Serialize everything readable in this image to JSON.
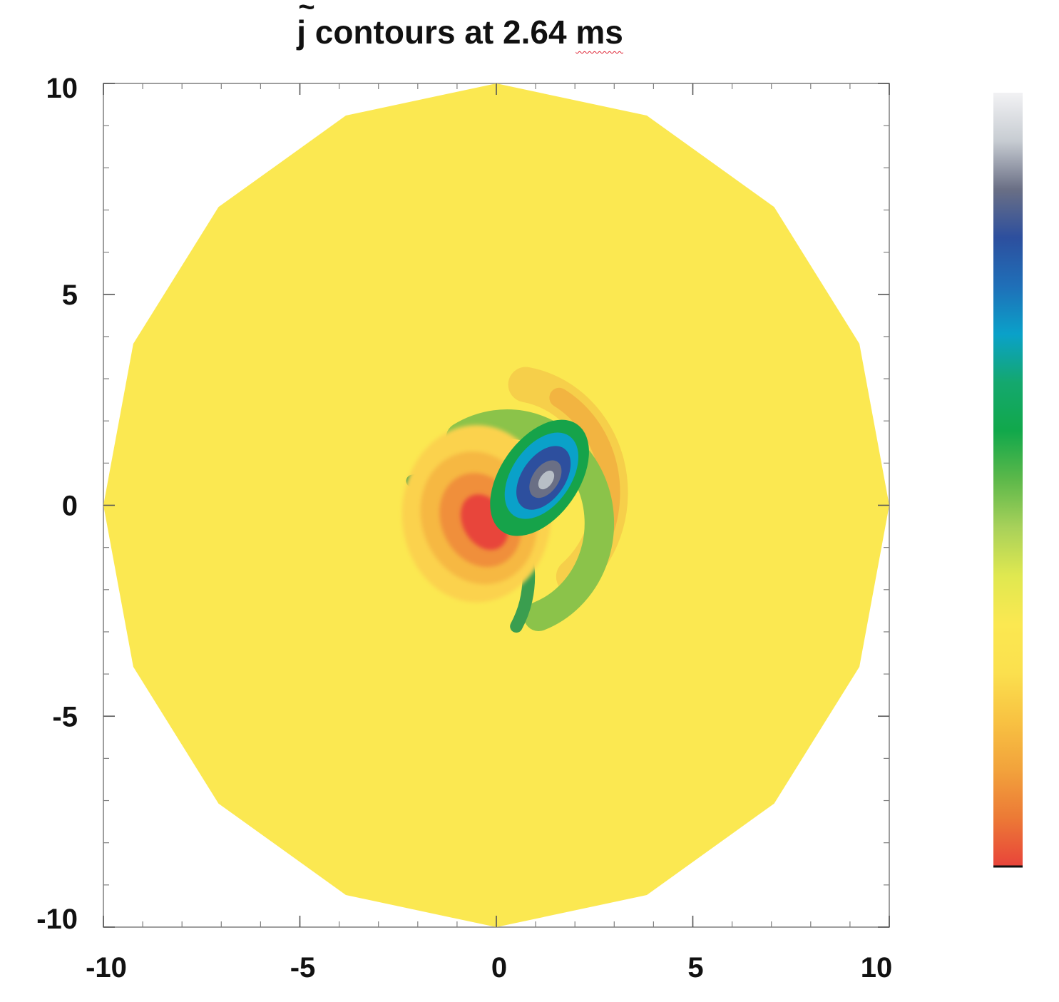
{
  "title": {
    "symbol": "j",
    "symbol_accent": "~",
    "text_before": "contours at 2.64 ",
    "unit": "ms"
  },
  "chart_data": {
    "type": "heatmap",
    "title": "j contours at 2.64 ms",
    "xlabel": "",
    "ylabel": "",
    "xlim": [
      -10,
      10
    ],
    "ylim": [
      -10,
      10
    ],
    "x_ticks": [
      -10,
      -5,
      0,
      5,
      10
    ],
    "y_ticks": [
      -10,
      -5,
      0,
      5,
      10
    ],
    "x_tick_labels": [
      "-10",
      "-5",
      "0",
      "5",
      "10"
    ],
    "y_tick_labels": [
      "10",
      "5",
      "0",
      "-5",
      "-10"
    ],
    "minor_tick_step": 1,
    "domain_shape": "16-sided polygon of radius 10",
    "domain_vertices": [
      [
        0,
        10
      ],
      [
        3.83,
        9.24
      ],
      [
        7.07,
        7.07
      ],
      [
        9.24,
        3.83
      ],
      [
        10,
        0
      ],
      [
        9.24,
        -3.83
      ],
      [
        7.07,
        -7.07
      ],
      [
        3.83,
        -9.24
      ],
      [
        0,
        -10
      ],
      [
        -3.83,
        -9.24
      ],
      [
        -7.07,
        -7.07
      ],
      [
        -9.24,
        -3.83
      ],
      [
        -10,
        0
      ],
      [
        -9.24,
        3.83
      ],
      [
        -7.07,
        7.07
      ],
      [
        -3.83,
        9.24
      ]
    ],
    "background_level_color": "#fbe851",
    "features": [
      {
        "kind": "negative-lobe",
        "color": "#e8453a",
        "center": [
          -0.3,
          -0.4
        ]
      },
      {
        "kind": "positive-lobe",
        "color": "#b7bec6",
        "center": [
          1.3,
          0.6
        ]
      },
      {
        "kind": "ring-arc",
        "color": "#8bc34a"
      },
      {
        "kind": "orange-arc",
        "color": "#f2b441"
      }
    ],
    "colorbar": {
      "orientation": "vertical",
      "colors_top_to_bottom": [
        "#f2f2f4",
        "#c7ccd2",
        "#6a6f85",
        "#2d4f9e",
        "#1f6fb8",
        "#0aa1c9",
        "#14a86e",
        "#11a84b",
        "#5cb84a",
        "#a8d15a",
        "#e0e850",
        "#fbe851",
        "#fbe04e",
        "#f8c242",
        "#f2a33c",
        "#ec7a36",
        "#e8453a"
      ],
      "tick_labels": []
    },
    "grid": false,
    "legend": "none"
  }
}
